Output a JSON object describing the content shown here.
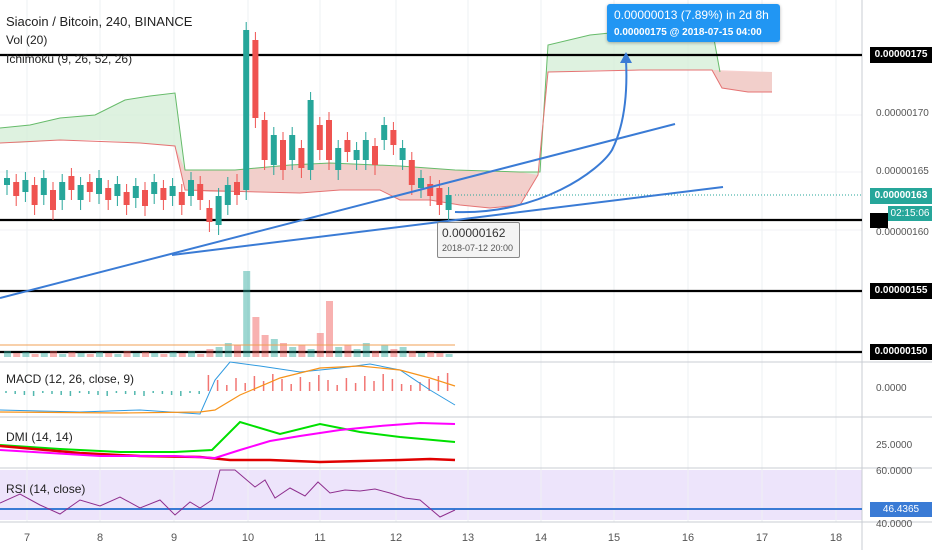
{
  "header": {
    "symbol": "Siacoin / Bitcoin, 240, BINANCE",
    "vol_label": "Vol (20)",
    "ichimoku_label": "Ichimoku (9, 26, 52, 26)"
  },
  "panes": {
    "macd_label": "MACD (12, 26, close, 9)",
    "dmi_label": "DMI (14, 14)",
    "rsi_label": "RSI (14, close)"
  },
  "price_axis": {
    "ticks": [
      "0.00000170",
      "0.00000165",
      "0.00000160"
    ],
    "levels": [
      "0.00000175",
      "0.00000155",
      "0.00000150"
    ],
    "current_price": "0.00000163",
    "countdown": "02:15:06"
  },
  "macd_axis": {
    "ticks": [
      "0.0000"
    ]
  },
  "dmi_axis": {
    "ticks": [
      "25.0000"
    ]
  },
  "rsi_axis": {
    "ticks": [
      "60.0000",
      "46.4365",
      "40.0000"
    ]
  },
  "time_axis": {
    "ticks": [
      "7",
      "8",
      "9",
      "10",
      "11",
      "12",
      "13",
      "14",
      "15",
      "16",
      "17",
      "18"
    ]
  },
  "tooltip_target": {
    "change": "0.00000013 (7.89%) in 2d 8h",
    "detail": "0.00000175  @ 2018-07-15  04:00"
  },
  "tooltip_low": {
    "price": "0.00000162",
    "date": "2018-07-12 20:00"
  },
  "colors": {
    "up": "#26a69a",
    "down": "#ef5350",
    "trendline": "#3a7bd5",
    "level": "#000000",
    "macd": "#2f9ae0",
    "signal": "#f7931a",
    "dmi_plus": "#00e000",
    "dmi_minus": "#ff0000",
    "adx": "#ff00ff",
    "rsi": "#8e2e8e",
    "rsi_band": "#ece3fb"
  },
  "chart_data": {
    "type": "candlestick",
    "x": [
      "7",
      "7.5",
      "8",
      "8.5",
      "9",
      "9.5",
      "10",
      "10.5",
      "11",
      "11.5",
      "12",
      "12.5",
      "12.8"
    ],
    "price_ohlc_samples": [
      {
        "o": 1.64e-06,
        "h": 1.65e-06,
        "l": 1.61e-06,
        "c": 1.63e-06
      },
      {
        "o": 1.63e-06,
        "h": 1.64e-06,
        "l": 1.61e-06,
        "c": 1.62e-06
      },
      {
        "o": 1.62e-06,
        "h": 1.63e-06,
        "l": 1.59e-06,
        "c": 1.61e-06
      },
      {
        "o": 1.61e-06,
        "h": 1.62e-06,
        "l": 1.59e-06,
        "c": 1.6e-06
      },
      {
        "o": 1.6e-06,
        "h": 1.63e-06,
        "l": 1.59e-06,
        "c": 1.63e-06
      },
      {
        "o": 1.63e-06,
        "h": 1.8e-06,
        "l": 1.62e-06,
        "c": 1.78e-06
      },
      {
        "o": 1.78e-06,
        "h": 1.8e-06,
        "l": 1.65e-06,
        "c": 1.67e-06
      },
      {
        "o": 1.67e-06,
        "h": 1.72e-06,
        "l": 1.63e-06,
        "c": 1.7e-06
      },
      {
        "o": 1.7e-06,
        "h": 1.71e-06,
        "l": 1.64e-06,
        "c": 1.66e-06
      },
      {
        "o": 1.66e-06,
        "h": 1.69e-06,
        "l": 1.64e-06,
        "c": 1.68e-06
      },
      {
        "o": 1.68e-06,
        "h": 1.69e-06,
        "l": 1.63e-06,
        "c": 1.64e-06
      },
      {
        "o": 1.64e-06,
        "h": 1.65e-06,
        "l": 1.62e-06,
        "c": 1.62e-06
      },
      {
        "o": 1.62e-06,
        "h": 1.63e-06,
        "l": 1.61e-06,
        "c": 1.63e-06
      }
    ],
    "ylim": [
      1.49e-06,
      1.81e-06
    ],
    "horizontal_levels": [
      1.75e-06,
      1.6e-06,
      1.55e-06,
      1.5e-06
    ],
    "rsi_value": 46.4365
  }
}
